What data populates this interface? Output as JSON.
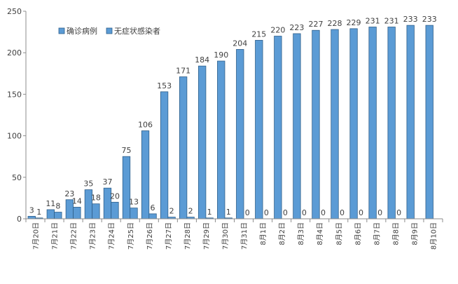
{
  "chart_data": {
    "type": "bar",
    "title": "",
    "xlabel": "",
    "ylabel": "",
    "ylim": [
      0,
      250
    ],
    "yticks": [
      0,
      50,
      100,
      150,
      200,
      250
    ],
    "grid": false,
    "legend_position": "top-left",
    "categories": [
      "7月20日",
      "7月21日",
      "7月22日",
      "7月23日",
      "7月24日",
      "7月25日",
      "7月26日",
      "7月27日",
      "7月28日",
      "7月29日",
      "7月30日",
      "7月31日",
      "8月1日",
      "8月2日",
      "8月3日",
      "8月4日",
      "8月5日",
      "8月6日",
      "8月7日",
      "8月8日",
      "8月9日",
      "8月10日"
    ],
    "series": [
      {
        "name": "确诊病例",
        "color": "#5B9BD5",
        "values": [
          3,
          11,
          23,
          35,
          37,
          75,
          106,
          153,
          171,
          184,
          190,
          204,
          215,
          220,
          223,
          227,
          228,
          229,
          231,
          231,
          233,
          233
        ]
      },
      {
        "name": "无症状感染者",
        "color": "#5B9BD5",
        "values": [
          1,
          8,
          14,
          18,
          20,
          13,
          6,
          2,
          2,
          1,
          1,
          0,
          0,
          0,
          0,
          0,
          0,
          0,
          0,
          0,
          null,
          null
        ]
      }
    ]
  }
}
